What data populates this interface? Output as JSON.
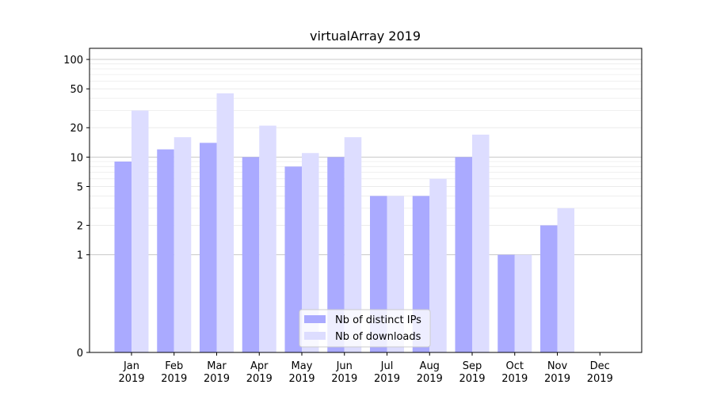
{
  "chart_data": {
    "type": "bar",
    "title": "virtualArray 2019",
    "xlabel": "",
    "ylabel": "",
    "yscale": "symlog",
    "ylim": [
      0,
      130
    ],
    "yticks": [
      0,
      1,
      2,
      5,
      10,
      20,
      50,
      100
    ],
    "ytick_labels": [
      "0",
      "1",
      "2",
      "5",
      "10",
      "20",
      "50",
      "100"
    ],
    "grid": "y",
    "legend_position": "bottom-center",
    "categories": [
      {
        "month": "Jan",
        "year": "2019"
      },
      {
        "month": "Feb",
        "year": "2019"
      },
      {
        "month": "Mar",
        "year": "2019"
      },
      {
        "month": "Apr",
        "year": "2019"
      },
      {
        "month": "May",
        "year": "2019"
      },
      {
        "month": "Jun",
        "year": "2019"
      },
      {
        "month": "Jul",
        "year": "2019"
      },
      {
        "month": "Aug",
        "year": "2019"
      },
      {
        "month": "Sep",
        "year": "2019"
      },
      {
        "month": "Oct",
        "year": "2019"
      },
      {
        "month": "Nov",
        "year": "2019"
      },
      {
        "month": "Dec",
        "year": "2019"
      }
    ],
    "series": [
      {
        "name": "Nb of distinct IPs",
        "color": "#aaaaff",
        "values": [
          9,
          12,
          14,
          10,
          8,
          10,
          4,
          4,
          10,
          1,
          2,
          0
        ]
      },
      {
        "name": "Nb of downloads",
        "color": "#ddddff",
        "values": [
          30,
          16,
          45,
          21,
          11,
          16,
          4,
          6,
          17,
          1,
          3,
          0
        ]
      }
    ]
  }
}
